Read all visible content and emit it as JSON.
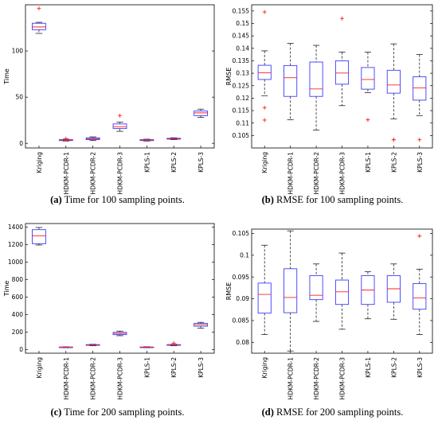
{
  "colors": {
    "box": "#3b3bff",
    "median": "#ff2020",
    "outlier": "#ff2020",
    "whisker": "#222222",
    "axis": "#000000"
  },
  "chart_data": [
    {
      "type": "box",
      "id": "a",
      "caption_tag": "(a)",
      "caption_text": " Time for 100 sampling points.",
      "ylabel": "Time",
      "ylim": [
        -5,
        150
      ],
      "yticks": [
        0,
        50,
        100
      ],
      "grid": false,
      "categories": [
        "Kriging",
        "HDKM-PCDR-1",
        "HDKM-PCDR-2",
        "HDKM-PCDR-3",
        "KPLS-1",
        "KPLS-2",
        "KPLS-3"
      ],
      "boxes": [
        {
          "wlo": 119,
          "q1": 123,
          "med": 126,
          "q3": 130,
          "whi": 131,
          "out": [
            146
          ]
        },
        {
          "wlo": 2.5,
          "q1": 3,
          "med": 3.5,
          "q3": 4,
          "whi": 4.5,
          "out": [
            5
          ]
        },
        {
          "wlo": 3,
          "q1": 4,
          "med": 5,
          "q3": 6,
          "whi": 7,
          "out": []
        },
        {
          "wlo": 13,
          "q1": 16,
          "med": 18,
          "q3": 21,
          "whi": 23,
          "out": [
            30
          ]
        },
        {
          "wlo": 2.5,
          "q1": 3,
          "med": 3.5,
          "q3": 4,
          "whi": 4.5,
          "out": []
        },
        {
          "wlo": 4,
          "q1": 4.5,
          "med": 5,
          "q3": 5.5,
          "whi": 6,
          "out": []
        },
        {
          "wlo": 28,
          "q1": 30,
          "med": 33,
          "q3": 35,
          "whi": 37,
          "out": []
        }
      ]
    },
    {
      "type": "box",
      "id": "b",
      "caption_tag": "(b)",
      "caption_text": " RMSE for 100 sampling points.",
      "ylabel": "RMSE",
      "ylim": [
        0.1,
        0.1575
      ],
      "yticks": [
        0.105,
        0.11,
        0.115,
        0.12,
        0.125,
        0.13,
        0.135,
        0.14,
        0.145,
        0.15,
        0.155
      ],
      "grid": false,
      "categories": [
        "Kriging",
        "HDKM-PCDR-1",
        "HDKM-PCDR-2",
        "HDKM-PCDR-3",
        "KPLS-1",
        "KPLS-2",
        "KPLS-3"
      ],
      "boxes": [
        {
          "wlo": 0.121,
          "q1": 0.1275,
          "med": 0.1302,
          "q3": 0.1332,
          "whi": 0.139,
          "out": [
            0.1546,
            0.1162,
            0.1112
          ]
        },
        {
          "wlo": 0.1113,
          "q1": 0.1207,
          "med": 0.1282,
          "q3": 0.1331,
          "whi": 0.142,
          "out": []
        },
        {
          "wlo": 0.1072,
          "q1": 0.1207,
          "med": 0.1237,
          "q3": 0.1345,
          "whi": 0.1412,
          "out": []
        },
        {
          "wlo": 0.117,
          "q1": 0.1256,
          "med": 0.1301,
          "q3": 0.135,
          "whi": 0.1385,
          "out": [
            0.152
          ]
        },
        {
          "wlo": 0.1222,
          "q1": 0.1236,
          "med": 0.1275,
          "q3": 0.1323,
          "whi": 0.1385,
          "out": [
            0.1113
          ]
        },
        {
          "wlo": 0.1117,
          "q1": 0.122,
          "med": 0.1253,
          "q3": 0.1312,
          "whi": 0.1418,
          "out": [
            0.1033,
            0.1033
          ]
        },
        {
          "wlo": 0.113,
          "q1": 0.1192,
          "med": 0.1241,
          "q3": 0.1286,
          "whi": 0.1375,
          "out": [
            0.1033
          ]
        }
      ]
    },
    {
      "type": "box",
      "id": "c",
      "caption_tag": "(c)",
      "caption_text": " Time for 200 sampling points.",
      "ylabel": "Time",
      "ylim": [
        -40,
        1440
      ],
      "yticks": [
        0,
        200,
        400,
        600,
        800,
        1000,
        1200,
        1400
      ],
      "grid": false,
      "categories": [
        "Kriging",
        "HDKM-PCDR-1",
        "HDKM-PCDR-2",
        "HDKM-PCDR-3",
        "KPLS-1",
        "KPLS-2",
        "KPLS-3"
      ],
      "boxes": [
        {
          "wlo": 1195,
          "q1": 1210,
          "med": 1300,
          "q3": 1370,
          "whi": 1395,
          "out": []
        },
        {
          "wlo": 22,
          "q1": 25,
          "med": 28,
          "q3": 31,
          "whi": 33,
          "out": []
        },
        {
          "wlo": 45,
          "q1": 50,
          "med": 54,
          "q3": 58,
          "whi": 62,
          "out": []
        },
        {
          "wlo": 160,
          "q1": 172,
          "med": 185,
          "q3": 198,
          "whi": 212,
          "out": []
        },
        {
          "wlo": 22,
          "q1": 25,
          "med": 28,
          "q3": 31,
          "whi": 34,
          "out": []
        },
        {
          "wlo": 45,
          "q1": 50,
          "med": 54,
          "q3": 58,
          "whi": 62,
          "out": [
            75
          ]
        },
        {
          "wlo": 245,
          "q1": 268,
          "med": 285,
          "q3": 300,
          "whi": 312,
          "out": []
        }
      ]
    },
    {
      "type": "box",
      "id": "d",
      "caption_tag": "(d)",
      "caption_text": " RMSE for 200 sampling points.",
      "ylabel": "RMSE",
      "ylim": [
        0.0775,
        0.106
      ],
      "yticks": [
        0.08,
        0.085,
        0.09,
        0.095,
        0.1,
        0.105
      ],
      "grid": false,
      "categories": [
        "Kriging",
        "HDKM-PCDR-1",
        "HDKM-PCDR-2",
        "HDKM-PCDR-3",
        "KPLS-1",
        "KPLS-2",
        "KPLS-3"
      ],
      "boxes": [
        {
          "wlo": 0.0818,
          "q1": 0.0867,
          "med": 0.091,
          "q3": 0.0936,
          "whi": 0.1023,
          "out": []
        },
        {
          "wlo": 0.078,
          "q1": 0.0868,
          "med": 0.0903,
          "q3": 0.0969,
          "whi": 0.1056,
          "out": []
        },
        {
          "wlo": 0.0848,
          "q1": 0.0898,
          "med": 0.0908,
          "q3": 0.0953,
          "whi": 0.098,
          "out": []
        },
        {
          "wlo": 0.083,
          "q1": 0.0887,
          "med": 0.0916,
          "q3": 0.0943,
          "whi": 0.1005,
          "out": []
        },
        {
          "wlo": 0.0854,
          "q1": 0.0887,
          "med": 0.092,
          "q3": 0.0953,
          "whi": 0.0962,
          "out": []
        },
        {
          "wlo": 0.0853,
          "q1": 0.0892,
          "med": 0.0923,
          "q3": 0.0953,
          "whi": 0.098,
          "out": []
        },
        {
          "wlo": 0.0818,
          "q1": 0.0876,
          "med": 0.0902,
          "q3": 0.0935,
          "whi": 0.0968,
          "out": [
            0.1044
          ]
        }
      ]
    }
  ]
}
